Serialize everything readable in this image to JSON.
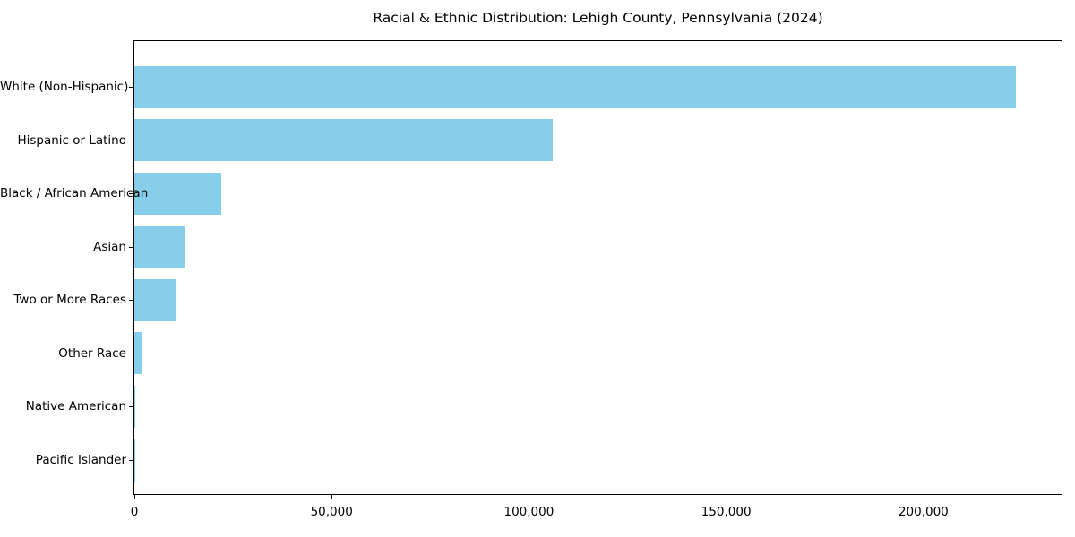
{
  "chart_data": {
    "type": "bar",
    "orientation": "horizontal",
    "title": "Racial & Ethnic Distribution: Lehigh County, Pennsylvania (2024)",
    "xlabel": "",
    "ylabel": "",
    "categories": [
      "White (Non-Hispanic)",
      "Hispanic or Latino",
      "Black / African American",
      "Asian",
      "Two or More Races",
      "Other Race",
      "Native American",
      "Pacific Islander"
    ],
    "values": [
      223500,
      106000,
      22000,
      13000,
      10600,
      2000,
      200,
      50
    ],
    "xlim": [
      0,
      235000
    ],
    "x_ticks": [
      0,
      50000,
      100000,
      150000,
      200000
    ],
    "x_tick_labels": [
      "0",
      "50,000",
      "100,000",
      "150,000",
      "200,000"
    ],
    "bar_color": "#87CEEB",
    "axis_color": "#000000",
    "background_color": "#ffffff",
    "grid": false,
    "legend": "none"
  }
}
